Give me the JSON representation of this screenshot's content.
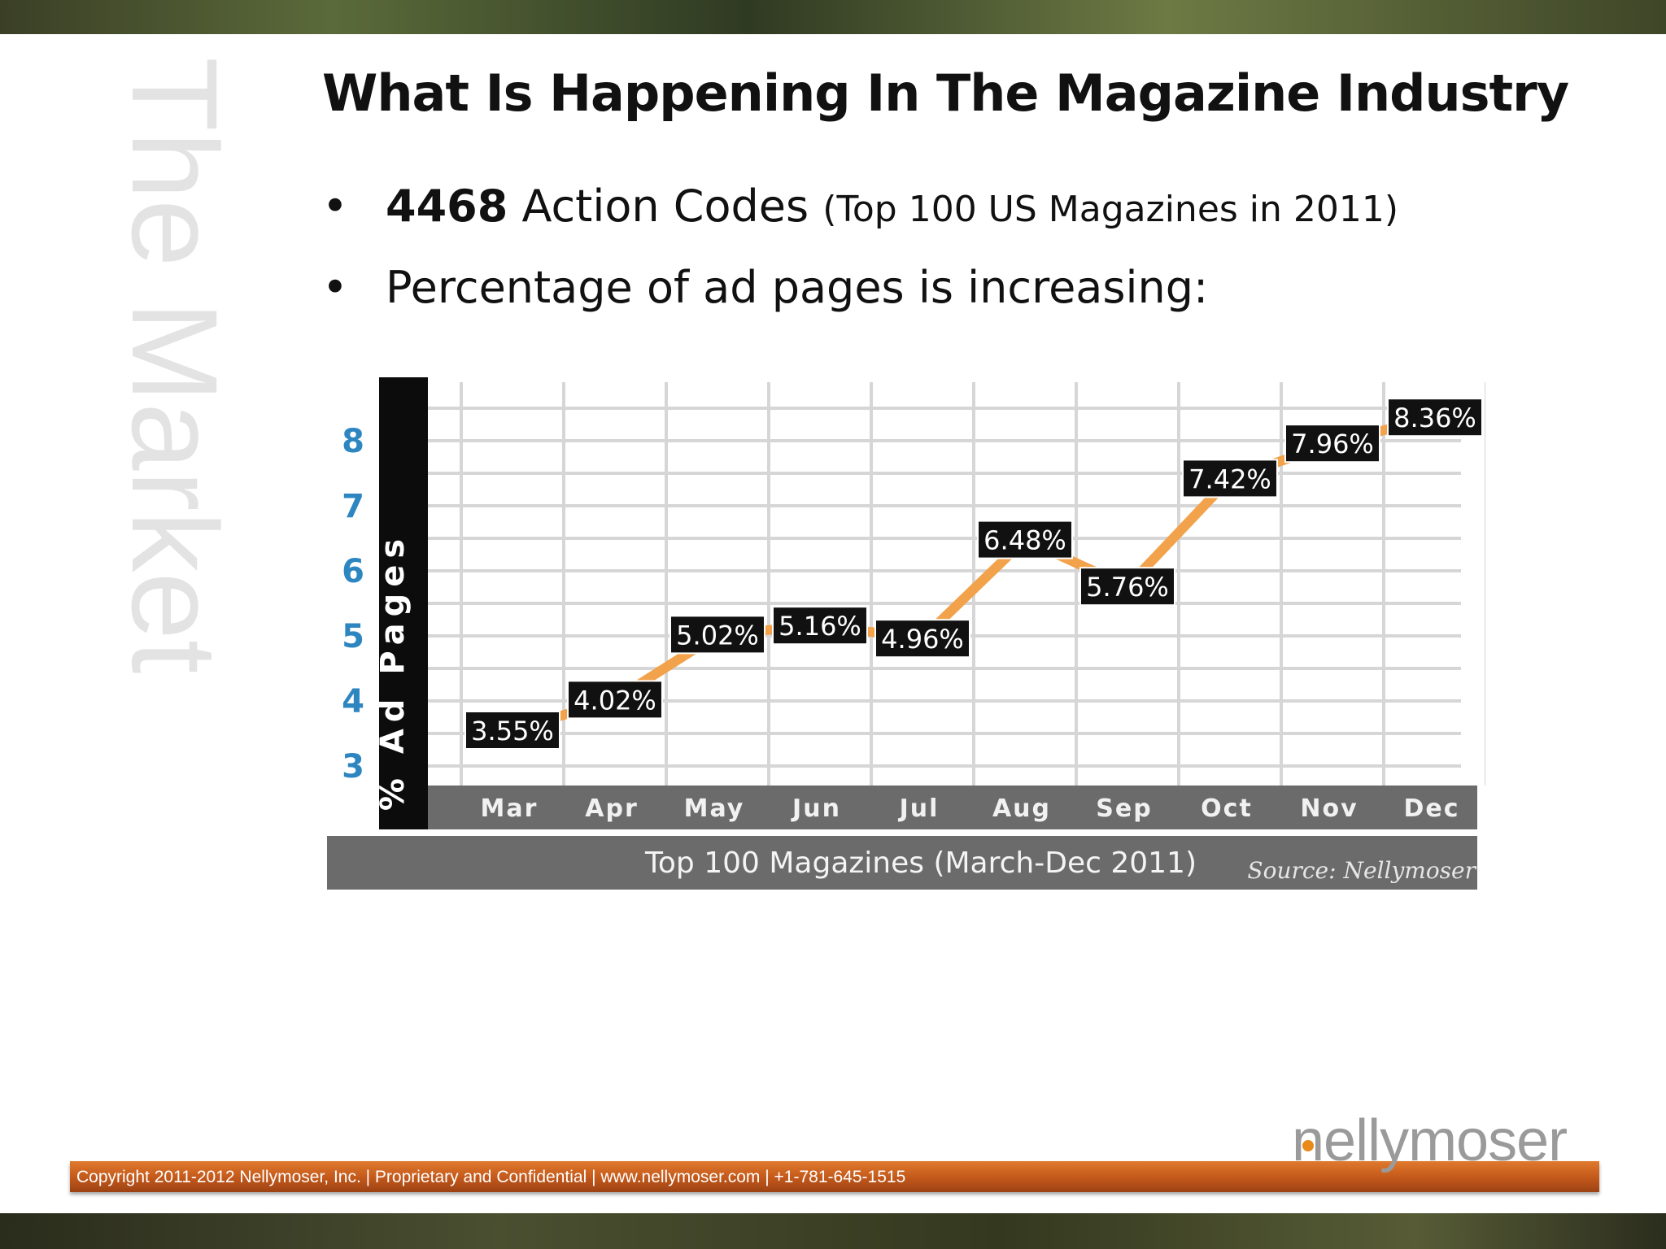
{
  "slide": {
    "section": "The Market",
    "title": "What Is Happening In The Magazine Industry",
    "bullets": [
      {
        "bold": "4468",
        "text": " Action Codes ",
        "small": "(Top 100 US Magazines in 2011)"
      },
      {
        "bold": "",
        "text": "Percentage of ad pages is increasing:",
        "small": ""
      }
    ],
    "bullet_symbol": "•"
  },
  "chart_data": {
    "type": "line",
    "categories": [
      "Mar",
      "Apr",
      "May",
      "Jun",
      "Jul",
      "Aug",
      "Sep",
      "Oct",
      "Nov",
      "Dec"
    ],
    "series": [
      {
        "values": [
          3.55,
          4.02,
          5.02,
          5.16,
          4.96,
          6.48,
          5.76,
          7.42,
          7.96,
          8.36
        ]
      }
    ],
    "data_labels": [
      "3.55%",
      "4.02%",
      "5.02%",
      "5.16%",
      "4.96%",
      "6.48%",
      "5.76%",
      "7.42%",
      "7.96%",
      "8.36%"
    ],
    "ylabel": "% Ad Pages",
    "yticks": [
      3,
      4,
      5,
      6,
      7,
      8
    ],
    "ylim": [
      3,
      8.5
    ],
    "xlabel": "Top 100 Magazines (March-Dec 2011)",
    "source": "Source: Nellymoser",
    "grid": true,
    "legend": "none",
    "colors": {
      "line": "#f2a24a",
      "tick_label": "#2e86c1",
      "label_bg": "#111111",
      "axis_band": "#6b6b6b"
    }
  },
  "footer": {
    "text": "Copyright 2011-2012  Nellymoser, Inc. |  Proprietary and Confidential | www.nellymoser.com | +1-781-645-1515",
    "logo": "nellymoser",
    "accent": "#c75a1c"
  }
}
